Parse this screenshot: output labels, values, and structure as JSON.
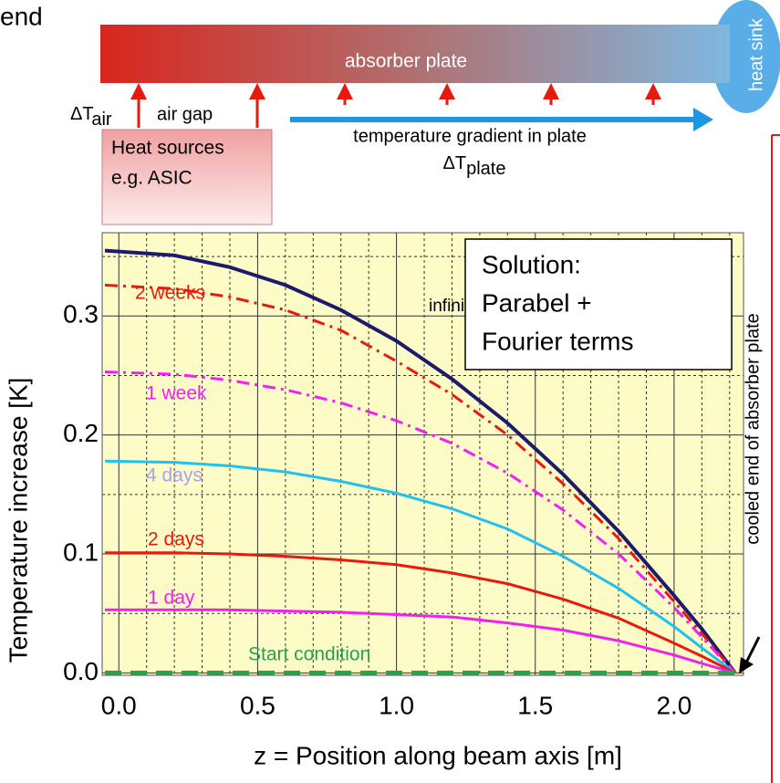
{
  "diagram": {
    "corner_text": "end",
    "plate": "absorber plate",
    "sink": "heat sink",
    "delta_air": [
      "ΔT",
      "air"
    ],
    "air_gap": "air gap",
    "gradient": "temperature gradient in plate",
    "delta_plate": [
      "ΔT",
      "plate"
    ],
    "sources": [
      "Heat sources",
      "e.g. ASIC"
    ],
    "solution": [
      "Solution:",
      "Parabel +",
      "Fourier terms"
    ],
    "cooled_end": "cooled end of absorber plate"
  },
  "chart_data": {
    "type": "line",
    "x_label": "z = Position along beam axis   [m]",
    "y_label": "Temperature increase [K]",
    "xlim": [
      -0.06,
      2.25
    ],
    "ylim": [
      -0.002,
      0.37
    ],
    "xticks": [
      {
        "value": 0,
        "label": "0.0"
      },
      0.5,
      {
        "value": 1,
        "label": "1.0"
      },
      1.5,
      {
        "value": 2,
        "label": "2.0"
      }
    ],
    "yticks": [
      {
        "value": 0,
        "label": "0.0"
      },
      0.1,
      0.2,
      0.3
    ],
    "minor_xticks": [
      0.1,
      0.2,
      0.3,
      0.4,
      0.6,
      0.7,
      0.8,
      0.9,
      1.1,
      1.2,
      1.3,
      1.4,
      1.6,
      1.7,
      1.8,
      1.9,
      2.1,
      2.2
    ],
    "minor_yticks": [
      0.05,
      0.15,
      0.25,
      0.35
    ],
    "grid": true,
    "background": "#fdfcc6",
    "x": [
      -0.05,
      0.2,
      0.4,
      0.6,
      0.8,
      1.0,
      1.2,
      1.4,
      1.6,
      1.8,
      2.0,
      2.1,
      2.22
    ],
    "series": [
      {
        "name": "infinity",
        "color": "#1c1a6a",
        "label_color": "#000000",
        "style": "solid",
        "values": [
          0.355,
          0.351,
          0.341,
          0.326,
          0.305,
          0.279,
          0.247,
          0.21,
          0.167,
          0.119,
          0.065,
          0.037,
          0
        ]
      },
      {
        "name": "2 weeks",
        "color": "#e8190f",
        "label_color": "#e8190f",
        "style": "dashdot",
        "values": [
          0.326,
          0.323,
          0.316,
          0.305,
          0.288,
          0.262,
          0.234,
          0.2,
          0.159,
          0.113,
          0.06,
          0.033,
          0
        ]
      },
      {
        "name": "1 week",
        "color": "#f020f0",
        "label_color": "#f020f0",
        "style": "dashdot",
        "values": [
          0.253,
          0.251,
          0.246,
          0.238,
          0.227,
          0.212,
          0.193,
          0.168,
          0.137,
          0.1,
          0.055,
          0.03,
          0
        ]
      },
      {
        "name": "4 days",
        "color": "#20c0f0",
        "label_color": "#a8a0f0",
        "style": "solid",
        "values": [
          0.178,
          0.177,
          0.174,
          0.169,
          0.161,
          0.151,
          0.138,
          0.121,
          0.098,
          0.071,
          0.039,
          0.021,
          0
        ]
      },
      {
        "name": "2 days",
        "color": "#e8190f",
        "label_color": "#e8190f",
        "style": "solid",
        "values": [
          0.101,
          0.101,
          0.1,
          0.098,
          0.095,
          0.091,
          0.084,
          0.075,
          0.062,
          0.046,
          0.025,
          0.014,
          0
        ]
      },
      {
        "name": "1 day",
        "color": "#f020f0",
        "label_color": "#f020f0",
        "style": "solid",
        "values": [
          0.053,
          0.053,
          0.053,
          0.052,
          0.051,
          0.049,
          0.047,
          0.042,
          0.036,
          0.027,
          0.015,
          0.008,
          0
        ]
      },
      {
        "name": "Start condition",
        "color": "#2aa050",
        "label_color": "#2aa050",
        "style": "dashed",
        "values": [
          0,
          0,
          0,
          0,
          0,
          0,
          0,
          0,
          0,
          0,
          0,
          0,
          0
        ]
      }
    ]
  }
}
